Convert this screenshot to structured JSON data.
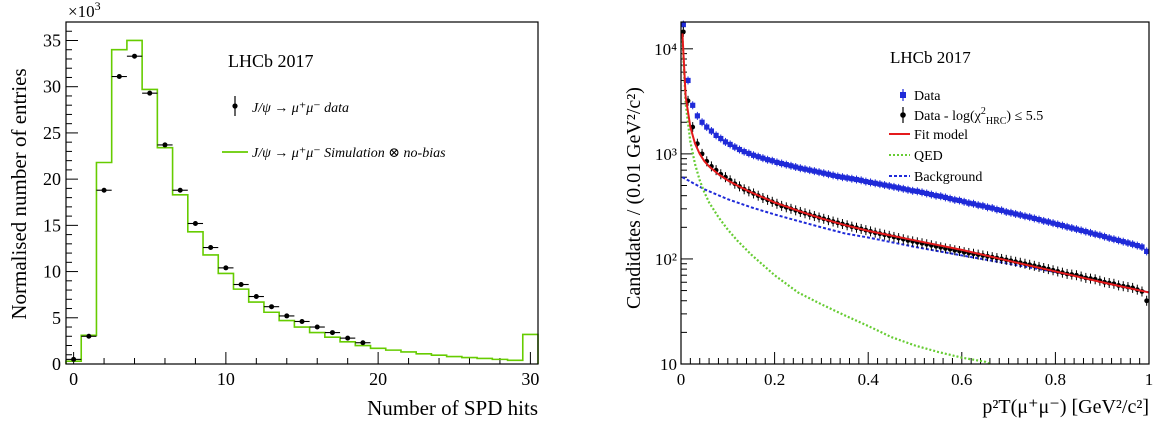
{
  "chart_data": [
    {
      "type": "histogram",
      "title": "",
      "annotation": "LHCb 2017",
      "xlabel": "Number of SPD hits",
      "ylabel": "Normalised number of entries",
      "y_multiplier_label": "×10",
      "y_multiplier_exponent": "3",
      "xlim": [
        -0.5,
        30.5
      ],
      "ylim": [
        0,
        37
      ],
      "x_ticks": [
        0,
        10,
        20,
        30
      ],
      "x_tick_labels": [
        "0",
        "10",
        "20",
        "30"
      ],
      "y_ticks": [
        0,
        5,
        10,
        15,
        20,
        25,
        30,
        35
      ],
      "y_tick_labels": [
        "0",
        "5",
        "10",
        "15",
        "20",
        "25",
        "30",
        "35"
      ],
      "legend_position": "top-right",
      "legend": {
        "data_label": "J/ψ → μ⁺μ⁻ data",
        "sim_label": "J/ψ → μ⁺μ⁻ Simulation ⊗ no-bias"
      },
      "colors": {
        "data": "#000000",
        "simulation": "#66cc00"
      },
      "series": [
        {
          "name": "J/ψ → μ⁺μ⁻ data",
          "style": "points",
          "x": [
            0,
            1,
            2,
            3,
            4,
            5,
            6,
            7,
            8,
            9,
            10,
            11,
            12,
            13,
            14,
            15,
            16,
            17,
            18,
            19
          ],
          "y": [
            0.5,
            3.0,
            18.8,
            31.1,
            33.3,
            29.3,
            23.7,
            18.8,
            15.2,
            12.6,
            10.4,
            8.6,
            7.3,
            6.2,
            5.2,
            4.6,
            4.0,
            3.4,
            2.8,
            2.3
          ]
        },
        {
          "name": "J/ψ → μ⁺μ⁻ Simulation ⊗ no-bias",
          "style": "step",
          "x": [
            0,
            1,
            2,
            3,
            4,
            5,
            6,
            7,
            8,
            9,
            10,
            11,
            12,
            13,
            14,
            15,
            16,
            17,
            18,
            19,
            20,
            21,
            22,
            23,
            24,
            25,
            26,
            27,
            28,
            29,
            30
          ],
          "y": [
            0.3,
            3.1,
            21.8,
            34.0,
            35.0,
            29.7,
            23.4,
            18.3,
            14.3,
            11.8,
            9.8,
            8.1,
            6.7,
            5.6,
            4.7,
            4.0,
            3.4,
            2.9,
            2.4,
            2.0,
            1.7,
            1.5,
            1.3,
            1.1,
            0.95,
            0.8,
            0.7,
            0.6,
            0.5,
            0.4,
            3.2
          ]
        }
      ]
    },
    {
      "type": "scatter",
      "title": "",
      "annotation": "LHCb 2017",
      "xlabel": "p²T(μ⁺μ⁻) [GeV²/c²]",
      "ylabel": "Candidates / (0.01 GeV²/c²)",
      "xlim": [
        0,
        1
      ],
      "ylim": [
        10,
        18000
      ],
      "y_scale": "log",
      "x_ticks": [
        0,
        0.2,
        0.4,
        0.6,
        0.8,
        1
      ],
      "x_tick_labels": [
        "0",
        "0.2",
        "0.4",
        "0.6",
        "0.8",
        "1"
      ],
      "y_ticks": [
        10,
        100,
        1000,
        10000
      ],
      "y_tick_labels": [
        "10",
        "10²",
        "10³",
        "10⁴"
      ],
      "legend_position": "top-right",
      "legend": {
        "data": "Data",
        "data_cut": "Data - log(χ²HRC) ≤ 5.5",
        "fit": "Fit model",
        "qed": "QED",
        "background": "Background"
      },
      "colors": {
        "data": "#1f2ad8",
        "data_cut": "#000000",
        "fit": "#e41a1c",
        "qed": "#66cc33",
        "background": "#1f2ad8"
      },
      "series": [
        {
          "name": "Data",
          "style": "markers",
          "x": [
            0.005,
            0.015,
            0.025,
            0.035,
            0.045,
            0.055,
            0.065,
            0.075,
            0.085,
            0.095,
            0.105,
            0.115,
            0.125,
            0.135,
            0.145,
            0.155,
            0.165,
            0.175,
            0.185,
            0.195,
            0.205,
            0.215,
            0.225,
            0.235,
            0.245,
            0.255,
            0.265,
            0.275,
            0.285,
            0.295,
            0.305,
            0.315,
            0.325,
            0.335,
            0.345,
            0.355,
            0.365,
            0.375,
            0.385,
            0.395,
            0.405,
            0.415,
            0.425,
            0.435,
            0.445,
            0.455,
            0.465,
            0.475,
            0.485,
            0.495,
            0.505,
            0.515,
            0.525,
            0.535,
            0.545,
            0.555,
            0.565,
            0.575,
            0.585,
            0.595,
            0.605,
            0.615,
            0.625,
            0.635,
            0.645,
            0.655,
            0.665,
            0.675,
            0.685,
            0.695,
            0.705,
            0.715,
            0.725,
            0.735,
            0.745,
            0.755,
            0.765,
            0.775,
            0.785,
            0.795,
            0.805,
            0.815,
            0.825,
            0.835,
            0.845,
            0.855,
            0.865,
            0.875,
            0.885,
            0.895,
            0.905,
            0.915,
            0.925,
            0.935,
            0.945,
            0.955,
            0.965,
            0.975,
            0.985,
            0.995
          ],
          "y": [
            17000,
            5000,
            2900,
            2300,
            2000,
            1800,
            1650,
            1500,
            1400,
            1300,
            1230,
            1160,
            1100,
            1050,
            1010,
            970,
            940,
            910,
            880,
            860,
            830,
            810,
            790,
            770,
            750,
            730,
            715,
            700,
            685,
            670,
            655,
            640,
            625,
            610,
            600,
            590,
            580,
            570,
            560,
            545,
            535,
            525,
            515,
            505,
            495,
            485,
            475,
            465,
            455,
            445,
            440,
            430,
            420,
            410,
            400,
            395,
            385,
            375,
            365,
            360,
            350,
            340,
            335,
            325,
            320,
            310,
            305,
            295,
            290,
            280,
            275,
            268,
            262,
            255,
            250,
            243,
            237,
            230,
            225,
            219,
            213,
            208,
            202,
            197,
            192,
            187,
            182,
            177,
            172,
            168,
            163,
            158,
            154,
            150,
            146,
            142,
            138,
            134,
            130,
            118
          ]
        },
        {
          "name": "Data - log(χ²HRC) ≤ 5.5",
          "style": "markers",
          "x": [
            0.005,
            0.015,
            0.025,
            0.035,
            0.045,
            0.055,
            0.065,
            0.075,
            0.085,
            0.095,
            0.105,
            0.115,
            0.125,
            0.135,
            0.145,
            0.155,
            0.165,
            0.175,
            0.185,
            0.195,
            0.205,
            0.215,
            0.225,
            0.235,
            0.245,
            0.255,
            0.265,
            0.275,
            0.285,
            0.295,
            0.305,
            0.315,
            0.325,
            0.335,
            0.345,
            0.355,
            0.365,
            0.375,
            0.385,
            0.395,
            0.405,
            0.415,
            0.425,
            0.435,
            0.445,
            0.455,
            0.465,
            0.475,
            0.485,
            0.495,
            0.505,
            0.515,
            0.525,
            0.535,
            0.545,
            0.555,
            0.565,
            0.575,
            0.585,
            0.595,
            0.605,
            0.615,
            0.625,
            0.635,
            0.645,
            0.655,
            0.665,
            0.675,
            0.685,
            0.695,
            0.705,
            0.715,
            0.725,
            0.735,
            0.745,
            0.755,
            0.765,
            0.775,
            0.785,
            0.795,
            0.805,
            0.815,
            0.825,
            0.835,
            0.845,
            0.855,
            0.865,
            0.875,
            0.885,
            0.895,
            0.905,
            0.915,
            0.925,
            0.935,
            0.945,
            0.955,
            0.965,
            0.975,
            0.985,
            0.995
          ],
          "y": [
            14500,
            3200,
            1800,
            1250,
            1000,
            850,
            760,
            700,
            640,
            600,
            560,
            520,
            490,
            460,
            440,
            420,
            400,
            380,
            365,
            350,
            335,
            320,
            310,
            300,
            290,
            280,
            272,
            264,
            256,
            248,
            241,
            234,
            227,
            221,
            215,
            209,
            203,
            198,
            193,
            188,
            183,
            178,
            174,
            170,
            166,
            162,
            158,
            154,
            150,
            147,
            144,
            141,
            138,
            135,
            132,
            129,
            126,
            124,
            121,
            119,
            116,
            114,
            112,
            110,
            108,
            106,
            104,
            102,
            100,
            98,
            96,
            94,
            92,
            90,
            88,
            86,
            84,
            82,
            80,
            78,
            76,
            74,
            72,
            71,
            70,
            68,
            66,
            65,
            64,
            62,
            60,
            59,
            58,
            56,
            55,
            54,
            53,
            51,
            49,
            40
          ]
        },
        {
          "name": "Fit model",
          "style": "line",
          "x": [
            0.003,
            0.01,
            0.02,
            0.03,
            0.04,
            0.05,
            0.06,
            0.08,
            0.1,
            0.12,
            0.15,
            0.2,
            0.25,
            0.3,
            0.35,
            0.4,
            0.5,
            0.6,
            0.7,
            0.8,
            0.9,
            1.0
          ],
          "y": [
            14000,
            3500,
            1800,
            1250,
            1000,
            850,
            760,
            640,
            560,
            500,
            430,
            345,
            288,
            243,
            210,
            185,
            150,
            122,
            96,
            76,
            60,
            48
          ]
        },
        {
          "name": "QED",
          "style": "dotted",
          "x": [
            0.003,
            0.01,
            0.02,
            0.03,
            0.04,
            0.05,
            0.06,
            0.08,
            0.1,
            0.12,
            0.15,
            0.2,
            0.25,
            0.3,
            0.35,
            0.4,
            0.45,
            0.5,
            0.55,
            0.6,
            0.65,
            0.66
          ],
          "y": [
            13000,
            3000,
            1300,
            800,
            560,
            430,
            345,
            250,
            190,
            150,
            110,
            70,
            48,
            37,
            29,
            23,
            18,
            15,
            13,
            11.5,
            10.5,
            10
          ]
        },
        {
          "name": "Background",
          "style": "dashed",
          "x": [
            0.003,
            0.05,
            0.1,
            0.15,
            0.2,
            0.25,
            0.3,
            0.35,
            0.4,
            0.5,
            0.6,
            0.7,
            0.8,
            0.9,
            1.0
          ],
          "y": [
            600,
            460,
            370,
            310,
            265,
            230,
            200,
            175,
            160,
            130,
            108,
            90,
            75,
            62,
            48
          ]
        }
      ]
    }
  ]
}
